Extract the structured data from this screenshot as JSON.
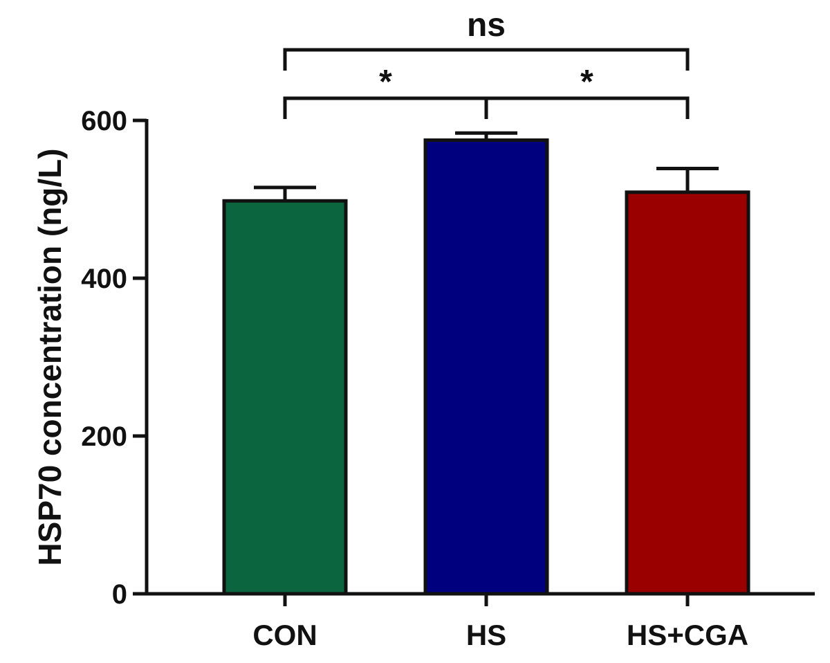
{
  "chart_data": {
    "type": "bar",
    "title": "",
    "xlabel": "",
    "ylabel": "HSP70 concentration (ng/L)",
    "ylim": [
      0,
      600
    ],
    "yticks": [
      0,
      200,
      400,
      600
    ],
    "categories": [
      "CON",
      "HS",
      "HS+CGA"
    ],
    "values": [
      498,
      575,
      509
    ],
    "errors": [
      17,
      9,
      30
    ],
    "colors": [
      "#0b6640",
      "#00007f",
      "#9b0000"
    ],
    "grid": false,
    "legend": "none",
    "comparisons": [
      {
        "groups": [
          "CON",
          "HS"
        ],
        "label": "*"
      },
      {
        "groups": [
          "HS",
          "HS+CGA"
        ],
        "label": "*"
      },
      {
        "groups": [
          "CON",
          "HS+CGA"
        ],
        "label": "ns"
      }
    ]
  }
}
